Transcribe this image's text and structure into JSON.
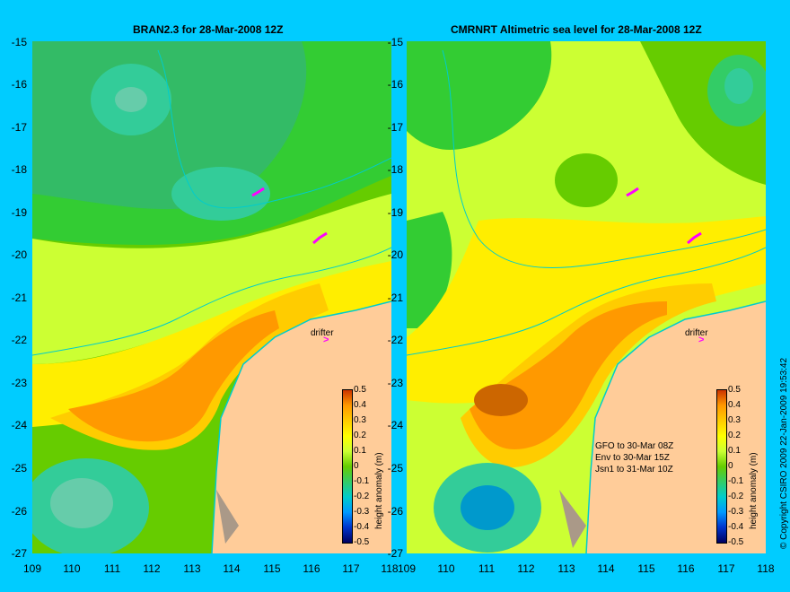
{
  "left_panel": {
    "title": "BRAN2.3 for 28-Mar-2008 12Z"
  },
  "right_panel": {
    "title": "CMRNRT Altimetric sea level  for 28-Mar-2008 12Z",
    "obs_notes": [
      "GFO to 30-Mar 08Z",
      "Env to 30-Mar 15Z",
      "Jsn1 to 31-Mar 10Z"
    ]
  },
  "axes": {
    "y_ticks": [
      "-15",
      "-16",
      "-17",
      "-18",
      "-19",
      "-20",
      "-21",
      "-22",
      "-23",
      "-24",
      "-25",
      "-26",
      "-27"
    ],
    "x_ticks": [
      "109",
      "110",
      "111",
      "112",
      "113",
      "114",
      "115",
      "116",
      "117",
      "118"
    ]
  },
  "colorbar": {
    "title": "height anomaly (m)",
    "ticks": [
      "0.5",
      "0.4",
      "0.3",
      "0.2",
      "0.1",
      "0",
      "-0.1",
      "-0.2",
      "-0.3",
      "-0.4",
      "-0.5"
    ]
  },
  "drifter_label": "drifter",
  "copyright": "© Copyright CSIRO 2009   22-Jan-2009 19:53:42",
  "colors": {
    "background": "#00ccff",
    "land": "#ffcc99",
    "coastline": "#00cccc",
    "drifter": "#ff00ff"
  }
}
